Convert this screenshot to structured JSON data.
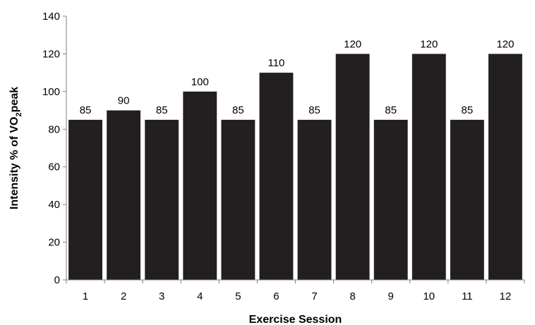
{
  "chart_data": {
    "type": "bar",
    "categories": [
      "1",
      "2",
      "3",
      "4",
      "5",
      "6",
      "7",
      "8",
      "9",
      "10",
      "11",
      "12"
    ],
    "values": [
      85,
      90,
      85,
      100,
      85,
      110,
      85,
      120,
      85,
      120,
      85,
      120
    ],
    "data_labels": [
      "85",
      "90",
      "85",
      "100",
      "85",
      "110",
      "85",
      "120",
      "85",
      "120",
      "85",
      "120"
    ],
    "xlabel": "Exercise Session",
    "ylabel": {
      "prefix": "Intensity % of VO",
      "subscript": "2",
      "suffix": "peak"
    },
    "ylim": [
      0,
      140
    ],
    "yticks": [
      0,
      20,
      40,
      60,
      80,
      100,
      120,
      140
    ],
    "grid": false,
    "legend": "none",
    "bar_color": "#231f20"
  }
}
